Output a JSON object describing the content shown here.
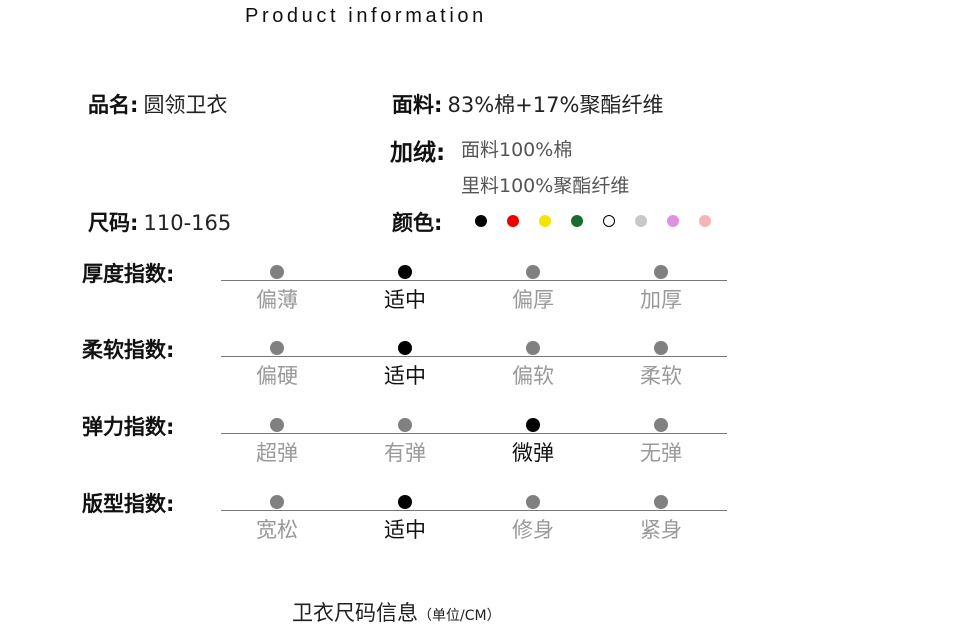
{
  "title": "Product information",
  "name": {
    "label": "品名:",
    "value": "圆领卫衣"
  },
  "fabric": {
    "label": "面料:",
    "value": "83%棉+17%聚酯纤维"
  },
  "fleece": {
    "label": "加绒:",
    "line1": "面料100%棉",
    "line2": "里料100%聚酯纤维"
  },
  "size": {
    "label": "尺码:",
    "value": "110-165"
  },
  "colors": {
    "label": "颜色:",
    "swatches": [
      "#000000",
      "#ee0000",
      "#f5e400",
      "#1a6b2e",
      "#ffffff",
      "#c8c8c8",
      "#e090e0",
      "#f5b5b5"
    ]
  },
  "indices": [
    {
      "label": "厚度指数:",
      "options": [
        "偏薄",
        "适中",
        "偏厚",
        "加厚"
      ],
      "selected": 1
    },
    {
      "label": "柔软指数:",
      "options": [
        "偏硬",
        "适中",
        "偏软",
        "柔软"
      ],
      "selected": 1
    },
    {
      "label": "弹力指数:",
      "options": [
        "超弹",
        "有弹",
        "微弹",
        "无弹"
      ],
      "selected": 2
    },
    {
      "label": "版型指数:",
      "options": [
        "宽松",
        "适中",
        "修身",
        "紧身"
      ],
      "selected": 1
    }
  ],
  "footer": {
    "text": "卫衣尺码信息",
    "unit": "（单位/CM）"
  }
}
